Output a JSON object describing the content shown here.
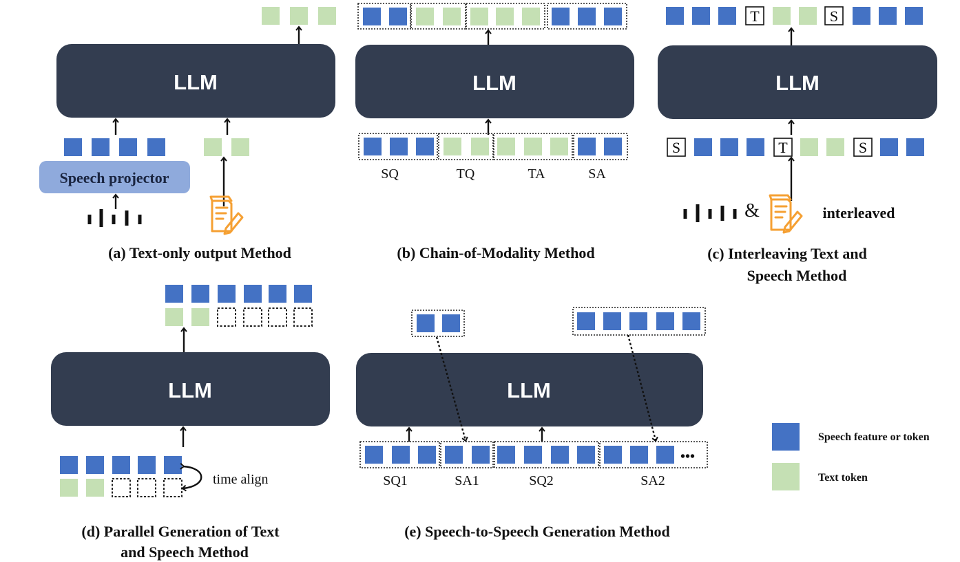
{
  "llm_label": "LLM",
  "panels": {
    "a": {
      "caption": "(a) Text-only output Method",
      "projector_label": "Speech projector"
    },
    "b": {
      "caption": "(b) Chain-of-Modality Method",
      "segments": [
        "SQ",
        "TQ",
        "TA",
        "SA"
      ]
    },
    "c": {
      "caption_lines": [
        "(c) Interleaving Text and",
        "Speech Method"
      ],
      "speech_marker": "S",
      "text_marker": "T",
      "ampersand": "&",
      "input_label": "interleaved"
    },
    "d": {
      "caption_lines": [
        "(d) Parallel Generation of Text",
        "and Speech Method"
      ],
      "align_label": "time align"
    },
    "e": {
      "caption": "(e) Speech-to-Speech Generation Method",
      "segments": [
        "SQ1",
        "SA1",
        "SQ2",
        "SA2"
      ],
      "ellipsis": "•••"
    }
  },
  "legend": {
    "speech": "Speech feature or token",
    "text": "Text token"
  },
  "colors": {
    "llm_box": "#333d50",
    "speech_token": "#4472c4",
    "text_token": "#c5e0b4",
    "projector": "#8faadc",
    "document_icon": "#f5a033"
  },
  "icons": [
    "waveform-icon",
    "document-pen-icon",
    "arrow-up-icon"
  ]
}
